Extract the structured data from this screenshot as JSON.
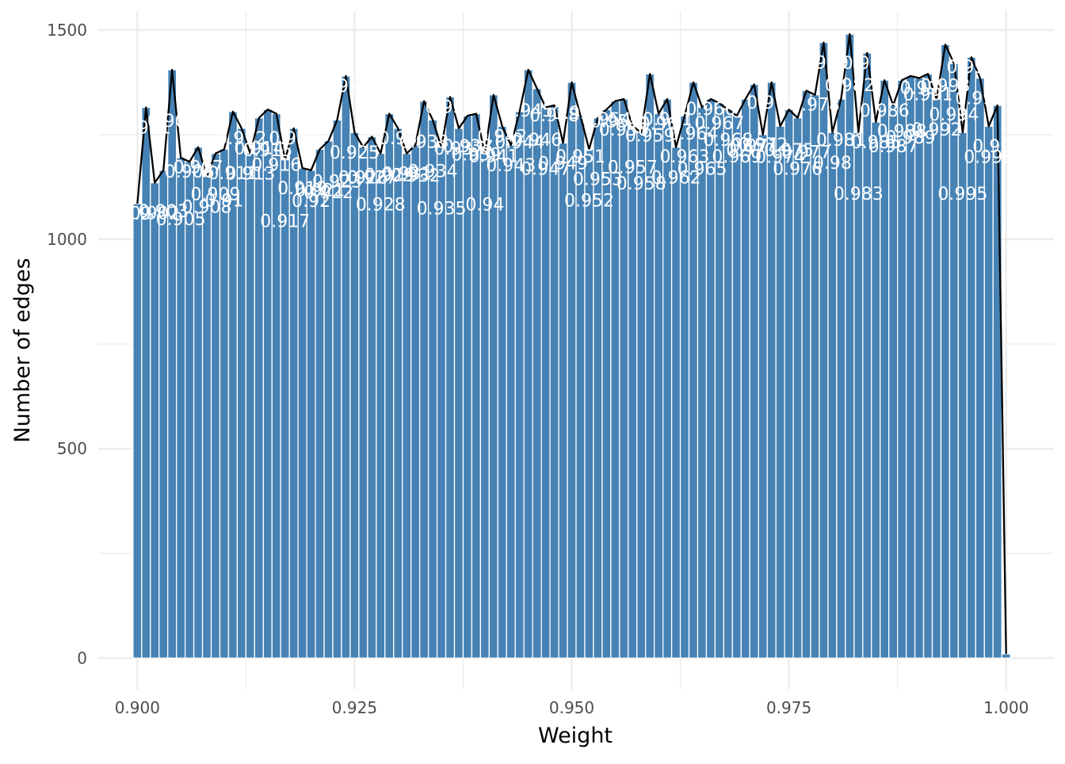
{
  "chart_data": {
    "type": "bar",
    "title": "",
    "xlabel": "Weight",
    "ylabel": "Number of edges",
    "xlim": [
      0.8955,
      1.0055
    ],
    "ylim": [
      -75,
      1545
    ],
    "x_ticks": [
      0.9,
      0.925,
      0.95,
      0.975,
      1.0
    ],
    "x_tick_labels": [
      "0.900",
      "0.925",
      "0.950",
      "0.975",
      "1.000"
    ],
    "y_ticks": [
      0,
      500,
      1000,
      1500
    ],
    "y_tick_labels": [
      "0",
      "500",
      "1000",
      "1500"
    ],
    "grid": true,
    "bar_color": "#4682b4",
    "line_color": "#000000",
    "overlay": "line connecting bar tops",
    "bin_width": 0.001,
    "x": [
      0.9,
      0.901,
      0.902,
      0.903,
      0.904,
      0.905,
      0.906,
      0.907,
      0.908,
      0.909,
      0.91,
      0.911,
      0.912,
      0.913,
      0.914,
      0.915,
      0.916,
      0.917,
      0.918,
      0.919,
      0.92,
      0.921,
      0.922,
      0.923,
      0.924,
      0.925,
      0.926,
      0.927,
      0.928,
      0.929,
      0.93,
      0.931,
      0.932,
      0.933,
      0.934,
      0.935,
      0.936,
      0.937,
      0.938,
      0.939,
      0.94,
      0.941,
      0.942,
      0.943,
      0.944,
      0.945,
      0.946,
      0.947,
      0.948,
      0.949,
      0.95,
      0.951,
      0.952,
      0.953,
      0.954,
      0.955,
      0.956,
      0.957,
      0.958,
      0.959,
      0.96,
      0.961,
      0.962,
      0.963,
      0.964,
      0.965,
      0.966,
      0.967,
      0.968,
      0.969,
      0.97,
      0.971,
      0.972,
      0.973,
      0.974,
      0.975,
      0.976,
      0.977,
      0.978,
      0.979,
      0.98,
      0.981,
      0.982,
      0.983,
      0.984,
      0.985,
      0.986,
      0.987,
      0.988,
      0.989,
      0.99,
      0.991,
      0.992,
      0.993,
      0.994,
      0.995,
      0.996,
      0.997,
      0.998,
      0.999,
      1.0
    ],
    "values": [
      1085,
      1315,
      1135,
      1165,
      1405,
      1195,
      1185,
      1220,
      1150,
      1205,
      1215,
      1305,
      1265,
      1205,
      1290,
      1310,
      1300,
      1190,
      1265,
      1170,
      1165,
      1215,
      1235,
      1285,
      1390,
      1255,
      1220,
      1245,
      1205,
      1300,
      1265,
      1205,
      1225,
      1330,
      1285,
      1220,
      1340,
      1265,
      1295,
      1300,
      1205,
      1345,
      1270,
      1225,
      1305,
      1405,
      1360,
      1315,
      1320,
      1230,
      1375,
      1295,
      1215,
      1290,
      1310,
      1330,
      1335,
      1270,
      1255,
      1395,
      1300,
      1335,
      1220,
      1295,
      1375,
      1315,
      1335,
      1325,
      1310,
      1295,
      1335,
      1370,
      1250,
      1375,
      1270,
      1310,
      1290,
      1355,
      1345,
      1470,
      1255,
      1335,
      1490,
      1255,
      1445,
      1280,
      1380,
      1320,
      1380,
      1390,
      1385,
      1395,
      1335,
      1465,
      1420,
      1255,
      1435,
      1385,
      1270,
      1320,
      10
    ],
    "labels": [
      "0.9",
      "0.901",
      "0.902",
      "0.903",
      "0.904",
      "0.905",
      "0.906",
      "0.907",
      "0.908",
      "0.909",
      "0.91",
      "0.911",
      "0.912",
      "0.913",
      "0.914",
      "0.915",
      "0.916",
      "0.917",
      "0.918",
      "0.919",
      "0.92",
      "0.921",
      "0.922",
      "0.923",
      "0.924",
      "0.925",
      "0.926",
      "0.927",
      "0.928",
      "0.929",
      "0.93",
      "0.931",
      "0.932",
      "0.933",
      "0.934",
      "0.935",
      "0.936",
      "0.937",
      "0.938",
      "0.939",
      "0.94",
      "0.941",
      "0.942",
      "0.943",
      "0.944",
      "0.945",
      "0.946",
      "0.947",
      "0.948",
      "0.949",
      "0.95",
      "0.951",
      "0.952",
      "0.953",
      "0.954",
      "0.955",
      "0.956",
      "0.957",
      "0.958",
      "0.959",
      "0.96",
      "0.961",
      "0.962",
      "0.963",
      "0.964",
      "0.965",
      "0.966",
      "0.967",
      "0.968",
      "0.969",
      "0.97",
      "0.971",
      "0.972",
      "0.973",
      "0.974",
      "0.975",
      "0.976",
      "0.977",
      "0.978",
      "0.979",
      "0.98",
      "0.981",
      "0.982",
      "0.983",
      "0.984",
      "0.985",
      "0.986",
      "0.987",
      "0.988",
      "0.989",
      "0.99",
      "0.991",
      "0.992",
      "0.993",
      "0.994",
      "0.995",
      "0.996",
      "0.997",
      "0.998",
      "0.999",
      "1"
    ]
  }
}
